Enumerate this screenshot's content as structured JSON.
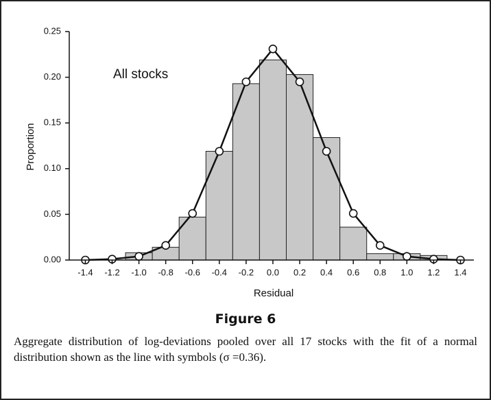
{
  "chart_data": {
    "type": "histogram",
    "annotation": "All stocks",
    "xlabel": "Residual",
    "ylabel": "Proportion",
    "bins": [
      -1.1,
      -0.9,
      -0.7,
      -0.5,
      -0.3,
      -0.1,
      0.1,
      0.3,
      0.5,
      0.7,
      0.9,
      1.1,
      1.3
    ],
    "values": [
      0.008,
      0.014,
      0.047,
      0.119,
      0.193,
      0.219,
      0.203,
      0.134,
      0.036,
      0.007,
      0.007,
      0.005
    ],
    "color": "#c8c8c8",
    "fit": {
      "x": [
        -1.4,
        -1.2,
        -1.0,
        -0.8,
        -0.6,
        -0.4,
        -0.2,
        0.0,
        0.2,
        0.4,
        0.6,
        0.8,
        1.0,
        1.2,
        1.4
      ],
      "values": [
        0.0,
        0.001,
        0.004,
        0.016,
        0.051,
        0.119,
        0.195,
        0.231,
        0.195,
        0.119,
        0.051,
        0.016,
        0.004,
        0.001,
        0.0
      ],
      "color": "#111111"
    },
    "xlim": [
      -1.52,
      1.5
    ],
    "ylim": [
      0,
      0.25
    ],
    "xticks": [
      -1.4,
      -1.2,
      {
        "value": -1.0,
        "label": "-1.0"
      },
      -0.8,
      -0.6,
      -0.4,
      -0.2,
      {
        "value": 0,
        "label": "0.0"
      },
      0.2,
      0.4,
      0.6,
      0.8,
      {
        "value": 1.0,
        "label": "1.0"
      },
      1.2,
      1.4
    ],
    "yticks": [
      {
        "value": 0,
        "label": "0.00"
      },
      {
        "value": 0.05,
        "label": "0.05"
      },
      {
        "value": 0.1,
        "label": "0.10"
      },
      {
        "value": 0.15,
        "label": "0.15"
      },
      {
        "value": 0.2,
        "label": "0.20"
      },
      {
        "value": 0.25,
        "label": "0.25"
      }
    ]
  },
  "figure": {
    "label": "Figure 6",
    "caption": "Aggregate distribution of log-deviations pooled over all 17 stocks with the fit of a normal distribution shown as the line with symbols (σ =0.36)."
  }
}
